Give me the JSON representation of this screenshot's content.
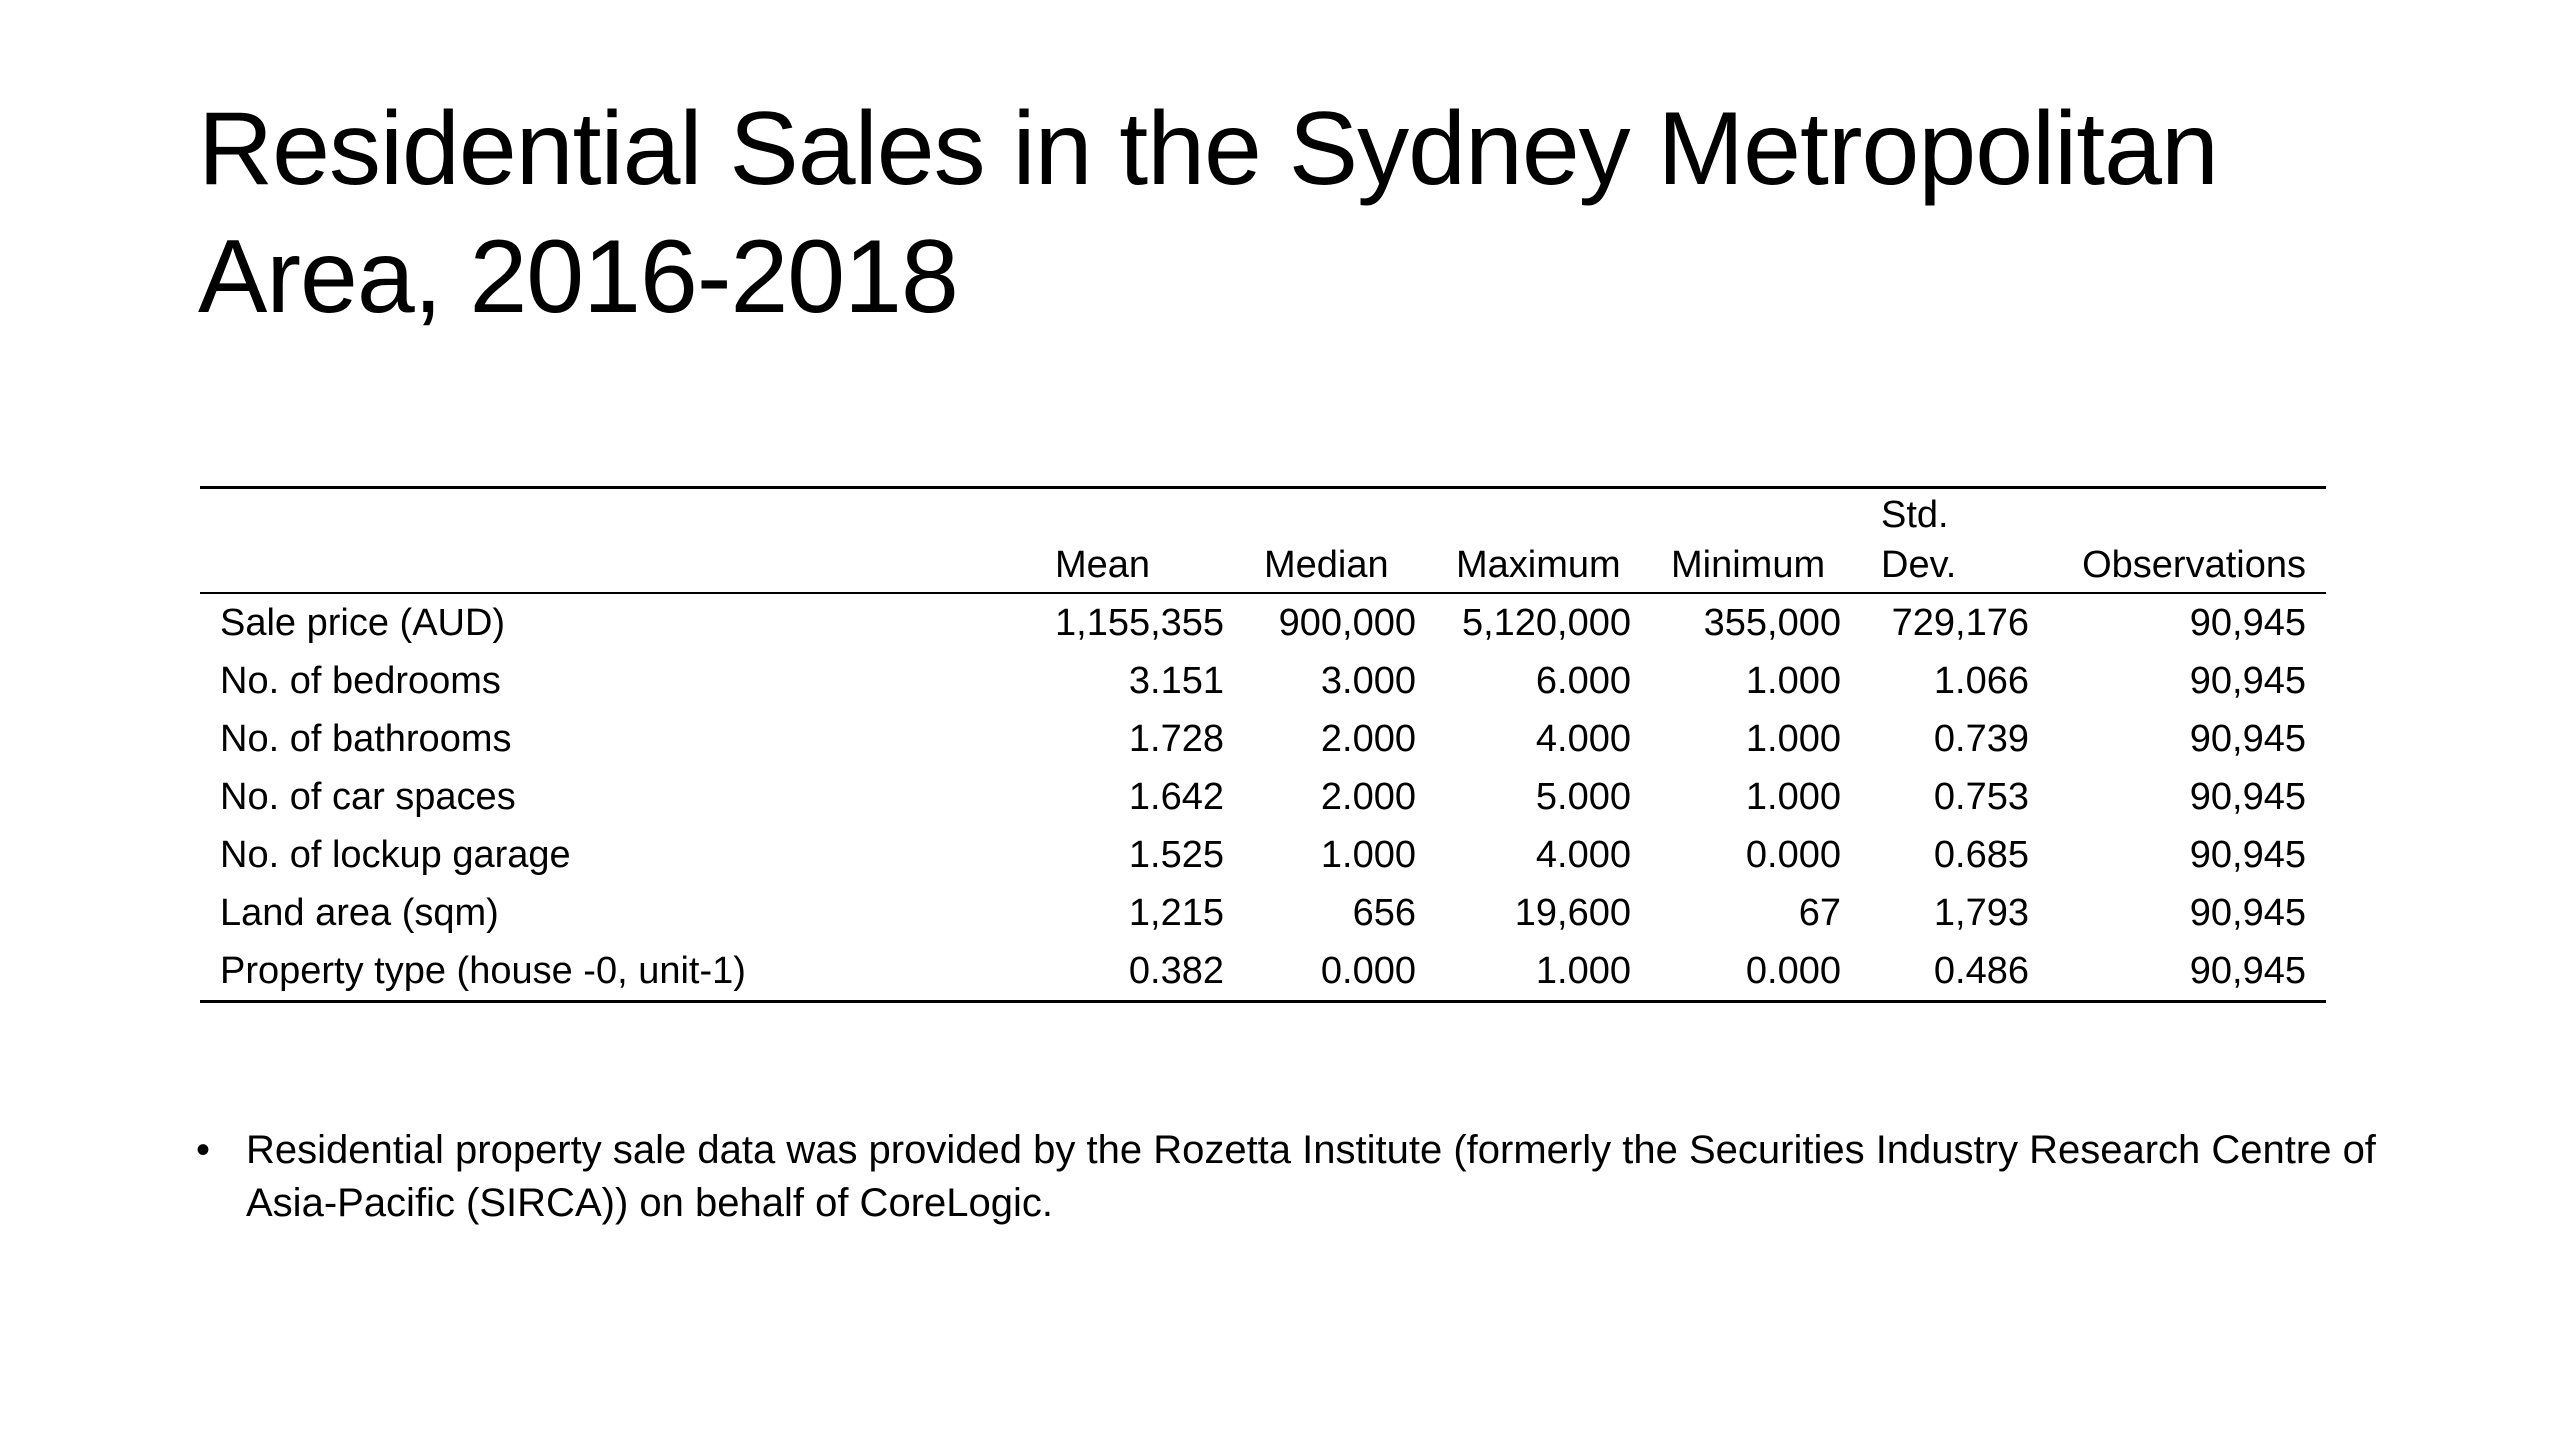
{
  "slide": {
    "title": "Residential Sales in the Sydney Metropolitan Area, 2016-2018"
  },
  "table": {
    "columns": [
      "",
      "Mean",
      "Median",
      "Maximum",
      "Minimum",
      "Std.\nDev.",
      "Observations"
    ],
    "rows": [
      [
        "Sale price (AUD)",
        "1,155,355",
        "900,000",
        "5,120,000",
        "355,000",
        "729,176",
        "90,945"
      ],
      [
        "No. of bedrooms",
        "3.151",
        "3.000",
        "6.000",
        "1.000",
        "1.066",
        "90,945"
      ],
      [
        "No. of bathrooms",
        "1.728",
        "2.000",
        "4.000",
        "1.000",
        "0.739",
        "90,945"
      ],
      [
        "No. of car spaces",
        "1.642",
        "2.000",
        "5.000",
        "1.000",
        "0.753",
        "90,945"
      ],
      [
        "No. of lockup garage",
        "1.525",
        "1.000",
        "4.000",
        "0.000",
        "0.685",
        "90,945"
      ],
      [
        "Land area (sqm)",
        "1,215",
        "656",
        "19,600",
        "67",
        "1,793",
        "90,945"
      ],
      [
        "Property type (house -0, unit-1)",
        "0.382",
        "0.000",
        "1.000",
        "0.000",
        "0.486",
        "90,945"
      ]
    ]
  },
  "notes": {
    "bullet_symbol": "•",
    "items": [
      "Residential property sale data was provided by the Rozetta Institute (formerly the Securities Industry Research Centre of Asia-Pacific (SIRCA)) on behalf of CoreLogic."
    ]
  }
}
